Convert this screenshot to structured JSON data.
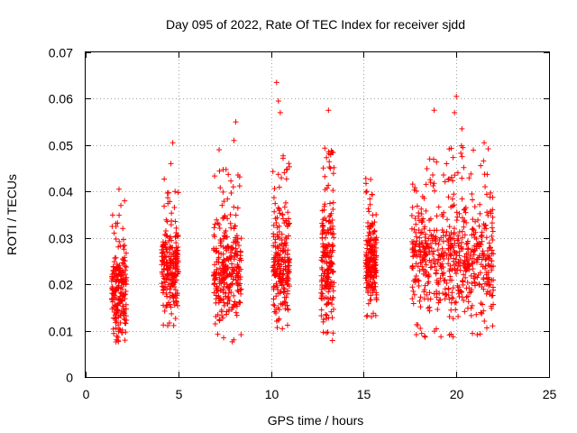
{
  "chart_data": {
    "type": "scatter",
    "title": "Day 095 of 2022, Rate Of TEC Index for receiver sjdd",
    "xlabel": "GPS time / hours",
    "ylabel": "ROTI / TECUs",
    "xlim": [
      0,
      25
    ],
    "ylim": [
      0,
      0.07
    ],
    "xticks": [
      0,
      5,
      10,
      15,
      20,
      25
    ],
    "yticks": [
      0,
      0.01,
      0.02,
      0.03,
      0.04,
      0.05,
      0.06,
      0.07
    ],
    "xtick_labels": [
      "0",
      "5",
      "10",
      "15",
      "20",
      "25"
    ],
    "ytick_labels": [
      "0",
      "0.01",
      "0.02",
      "0.03",
      "0.04",
      "0.05",
      "0.06",
      "0.07"
    ],
    "grid": true,
    "marker": "+",
    "color": "#ff0000",
    "series": [
      {
        "name": "ROTI",
        "clusters": [
          {
            "x_start": 1.4,
            "x_end": 2.2,
            "y_min": 0.0075,
            "y_max": 0.035,
            "outliers": [
              [
                1.8,
                0.0405
              ],
              [
                2.1,
                0.038
              ],
              [
                1.9,
                0.037
              ]
            ]
          },
          {
            "x_start": 4.1,
            "x_end": 5.0,
            "y_min": 0.0105,
            "y_max": 0.043,
            "outliers": [
              [
                4.7,
                0.0505
              ],
              [
                4.6,
                0.046
              ]
            ]
          },
          {
            "x_start": 6.9,
            "x_end": 8.4,
            "y_min": 0.0075,
            "y_max": 0.045,
            "outliers": [
              [
                7.2,
                0.049
              ],
              [
                8.1,
                0.055
              ],
              [
                8.0,
                0.051
              ]
            ]
          },
          {
            "x_start": 10.1,
            "x_end": 11.0,
            "y_min": 0.009,
            "y_max": 0.048,
            "outliers": [
              [
                10.3,
                0.0635
              ],
              [
                10.4,
                0.0595
              ],
              [
                10.5,
                0.057
              ]
            ]
          },
          {
            "x_start": 12.7,
            "x_end": 13.4,
            "y_min": 0.0075,
            "y_max": 0.0505,
            "outliers": [
              [
                13.1,
                0.0575
              ]
            ]
          },
          {
            "x_start": 15.1,
            "x_end": 15.7,
            "y_min": 0.0125,
            "y_max": 0.0435,
            "outliers": []
          },
          {
            "x_start": 17.6,
            "x_end": 22.0,
            "y_min": 0.0085,
            "y_max": 0.05,
            "outliers": [
              [
                18.8,
                0.0575
              ],
              [
                20.0,
                0.0605
              ],
              [
                20.3,
                0.0535
              ],
              [
                21.5,
                0.0505
              ],
              [
                19.9,
                0.057
              ]
            ]
          }
        ]
      }
    ]
  }
}
